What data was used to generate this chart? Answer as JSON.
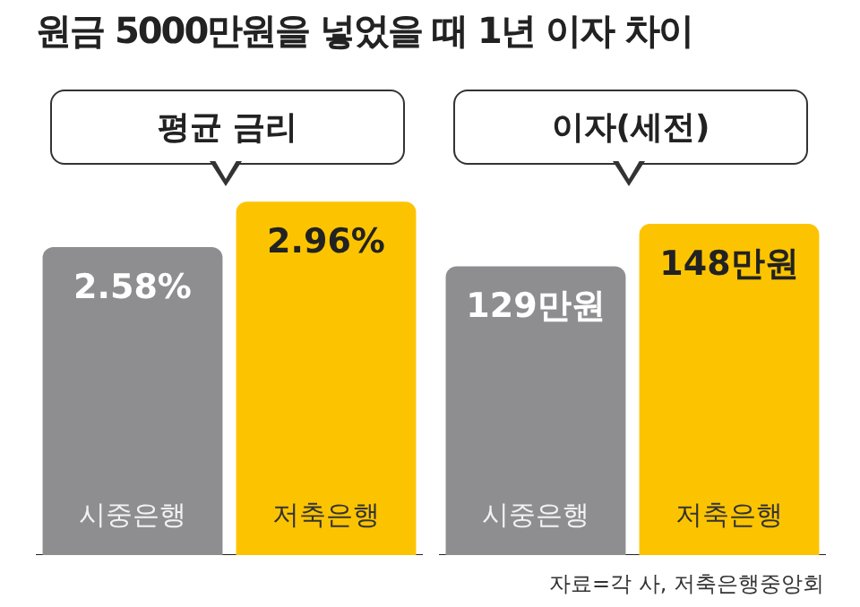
{
  "chart_data": [
    {
      "type": "bar",
      "title": "원금 5000만원을 넣었을 때 1년 이자 차이",
      "subtitle": "평균 금리",
      "categories": [
        "시중은행",
        "저축은행"
      ],
      "values": [
        2.58,
        2.96
      ],
      "colors": [
        "#8e8e90",
        "#fcc400"
      ],
      "value_labels": [
        "2.58%",
        "2.96%"
      ]
    },
    {
      "type": "bar",
      "subtitle": "이자(세전)",
      "categories": [
        "시중은행",
        "저축은행"
      ],
      "values": [
        129,
        148
      ],
      "colors": [
        "#8e8e90",
        "#fcc400"
      ],
      "value_labels": [
        "129만원",
        "148만원"
      ],
      "annotations": [
        "자료=각 사, 저축은행중앙회"
      ]
    }
  ]
}
